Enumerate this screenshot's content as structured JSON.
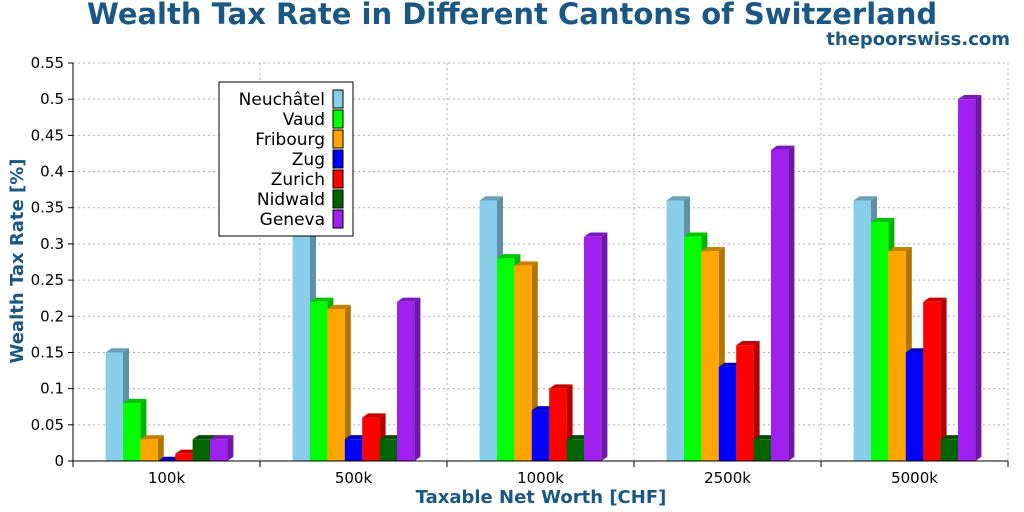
{
  "chart_data": {
    "type": "bar",
    "title": "Wealth Tax Rate in Different Cantons of Switzerland",
    "subtitle": "thepoorswiss.com",
    "xlabel": "Taxable Net Worth [CHF]",
    "ylabel": "Wealth Tax Rate [%]",
    "ylim": [
      0,
      0.55
    ],
    "yticks": [
      "0",
      "0.05",
      "0.1",
      "0.15",
      "0.2",
      "0.25",
      "0.3",
      "0.35",
      "0.4",
      "0.45",
      "0.5",
      "0.55"
    ],
    "grid": true,
    "legend_position": "top-left",
    "categories": [
      "100k",
      "500k",
      "1000k",
      "2500k",
      "5000k"
    ],
    "series": [
      {
        "name": "Neuchâtel",
        "color": "#87ceeb",
        "values": [
          0.15,
          0.35,
          0.36,
          0.36,
          0.36
        ]
      },
      {
        "name": "Vaud",
        "color": "#00ff00",
        "values": [
          0.08,
          0.22,
          0.28,
          0.31,
          0.33
        ]
      },
      {
        "name": "Fribourg",
        "color": "#ffa500",
        "values": [
          0.03,
          0.21,
          0.27,
          0.29,
          0.29
        ]
      },
      {
        "name": "Zug",
        "color": "#0000ff",
        "values": [
          0.0,
          0.03,
          0.07,
          0.13,
          0.15
        ]
      },
      {
        "name": "Zurich",
        "color": "#ff0000",
        "values": [
          0.01,
          0.06,
          0.1,
          0.16,
          0.22
        ]
      },
      {
        "name": "Nidwald",
        "color": "#006400",
        "values": [
          0.03,
          0.03,
          0.03,
          0.03,
          0.03
        ]
      },
      {
        "name": "Geneva",
        "color": "#a020f0",
        "values": [
          0.03,
          0.22,
          0.31,
          0.43,
          0.5
        ]
      }
    ]
  }
}
